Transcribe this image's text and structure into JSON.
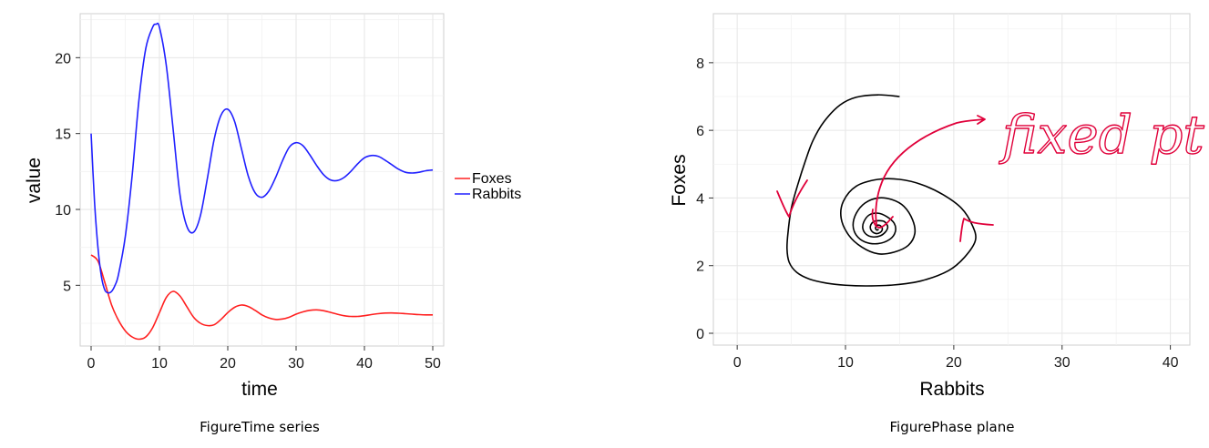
{
  "chart_data": [
    {
      "type": "line",
      "title": "",
      "caption": "FigureTime series",
      "xlabel": "time",
      "ylabel": "value",
      "xlim": [
        -1.6,
        51.6
      ],
      "ylim": [
        1.0,
        22.9
      ],
      "x_ticks": [
        0,
        10,
        20,
        30,
        40,
        50
      ],
      "y_ticks": [
        5,
        10,
        15,
        20
      ],
      "grid": true,
      "legend_placement": "right",
      "series": [
        {
          "name": "Foxes",
          "color": "#ff2020",
          "x": [
            0,
            1,
            2,
            3,
            4,
            5,
            6,
            7,
            8,
            9,
            10,
            11,
            12,
            13,
            14,
            15,
            16,
            17,
            18,
            19,
            20,
            21,
            22,
            23,
            24,
            25,
            26,
            27,
            28,
            29,
            30,
            31,
            32,
            33,
            34,
            35,
            36,
            37,
            38,
            39,
            40,
            41,
            42,
            43,
            44,
            45,
            46,
            47,
            48,
            49,
            50
          ],
          "y": [
            7.0,
            6.6,
            5.2,
            3.7,
            2.7,
            2.0,
            1.6,
            1.45,
            1.6,
            2.2,
            3.2,
            4.2,
            4.6,
            4.3,
            3.6,
            2.9,
            2.5,
            2.35,
            2.4,
            2.75,
            3.2,
            3.55,
            3.7,
            3.6,
            3.35,
            3.05,
            2.85,
            2.75,
            2.78,
            2.9,
            3.1,
            3.25,
            3.35,
            3.38,
            3.33,
            3.22,
            3.1,
            3.0,
            2.95,
            2.95,
            3.0,
            3.07,
            3.13,
            3.17,
            3.18,
            3.16,
            3.13,
            3.1,
            3.07,
            3.05,
            3.05
          ]
        },
        {
          "name": "Rabbits",
          "color": "#2020ff",
          "x": [
            0,
            0.5,
            1,
            1.5,
            2,
            2.5,
            3,
            3.5,
            4,
            5,
            6,
            7,
            8,
            9,
            9.5,
            10,
            11,
            12,
            13,
            14,
            15,
            16,
            17,
            18,
            19,
            20,
            21,
            22,
            23,
            24,
            25,
            26,
            27,
            28,
            29,
            30,
            31,
            32,
            33,
            34,
            35,
            36,
            37,
            38,
            39,
            40,
            41,
            42,
            43,
            44,
            45,
            46,
            47,
            48,
            49,
            50
          ],
          "y": [
            15.0,
            10.5,
            7.5,
            5.6,
            4.7,
            4.5,
            4.6,
            5.0,
            5.7,
            8.2,
            12.2,
            17.2,
            20.6,
            22.0,
            22.2,
            22.0,
            19.5,
            15.3,
            11.0,
            8.9,
            8.5,
            9.6,
            12.0,
            14.6,
            16.2,
            16.6,
            15.8,
            14.0,
            12.2,
            11.1,
            10.8,
            11.2,
            12.1,
            13.2,
            14.1,
            14.4,
            14.2,
            13.6,
            12.9,
            12.3,
            11.95,
            11.9,
            12.1,
            12.5,
            13.0,
            13.4,
            13.55,
            13.5,
            13.25,
            12.95,
            12.65,
            12.45,
            12.4,
            12.45,
            12.55,
            12.6
          ]
        }
      ]
    },
    {
      "type": "line",
      "title": "",
      "caption": "FigurePhase plane",
      "xlabel": "Rabbits",
      "ylabel": "Foxes",
      "xlim": [
        -2.2,
        41.8
      ],
      "ylim": [
        -0.35,
        9.45
      ],
      "x_ticks": [
        0,
        10,
        20,
        30,
        40
      ],
      "y_ticks": [
        0,
        2,
        4,
        6,
        8
      ],
      "grid": true,
      "series": [
        {
          "color": "#000000",
          "x": [
            15.0,
            13.0,
            11.0,
            9.5,
            8.0,
            7.0,
            6.3,
            5.6,
            5.0,
            4.7,
            4.6,
            4.8,
            5.5,
            6.7,
            8.3,
            10.0,
            12.0,
            14.5,
            17.0,
            19.5,
            21.0,
            22.0,
            21.7,
            20.7,
            19.0,
            17.0,
            15.0,
            13.0,
            11.0,
            9.8,
            9.6,
            10.3,
            11.5,
            13.0,
            14.5,
            15.8,
            16.4,
            16.2,
            15.4,
            14.3,
            13.0,
            11.8,
            11.0,
            10.7,
            11.0,
            11.8,
            13.0,
            14.1,
            14.6,
            14.5,
            13.8,
            13.0,
            12.2,
            11.7,
            11.6,
            11.9,
            12.5,
            13.2,
            13.7,
            13.9,
            13.6,
            13.1,
            12.6,
            12.3,
            12.4,
            12.8,
            13.2,
            13.4,
            13.3,
            13.0,
            12.8,
            12.8,
            12.95,
            13.05
          ],
          "y": [
            7.0,
            7.05,
            6.98,
            6.75,
            6.25,
            5.7,
            5.1,
            4.4,
            3.7,
            3.0,
            2.5,
            2.1,
            1.8,
            1.6,
            1.48,
            1.42,
            1.4,
            1.43,
            1.55,
            1.85,
            2.25,
            2.75,
            3.2,
            3.7,
            4.1,
            4.4,
            4.55,
            4.55,
            4.35,
            3.9,
            3.4,
            2.9,
            2.55,
            2.35,
            2.4,
            2.6,
            2.95,
            3.35,
            3.75,
            3.95,
            4.0,
            3.85,
            3.55,
            3.2,
            2.9,
            2.7,
            2.65,
            2.78,
            3.0,
            3.25,
            3.45,
            3.55,
            3.5,
            3.3,
            3.1,
            2.93,
            2.85,
            2.88,
            3.0,
            3.15,
            3.3,
            3.33,
            3.3,
            3.17,
            3.03,
            2.95,
            2.98,
            3.07,
            3.16,
            3.2,
            3.15,
            3.08,
            3.05,
            3.08
          ]
        }
      ],
      "annotations": [
        {
          "text": "fixed pt",
          "color": "#e0003a",
          "style": "handwritten"
        }
      ]
    }
  ]
}
